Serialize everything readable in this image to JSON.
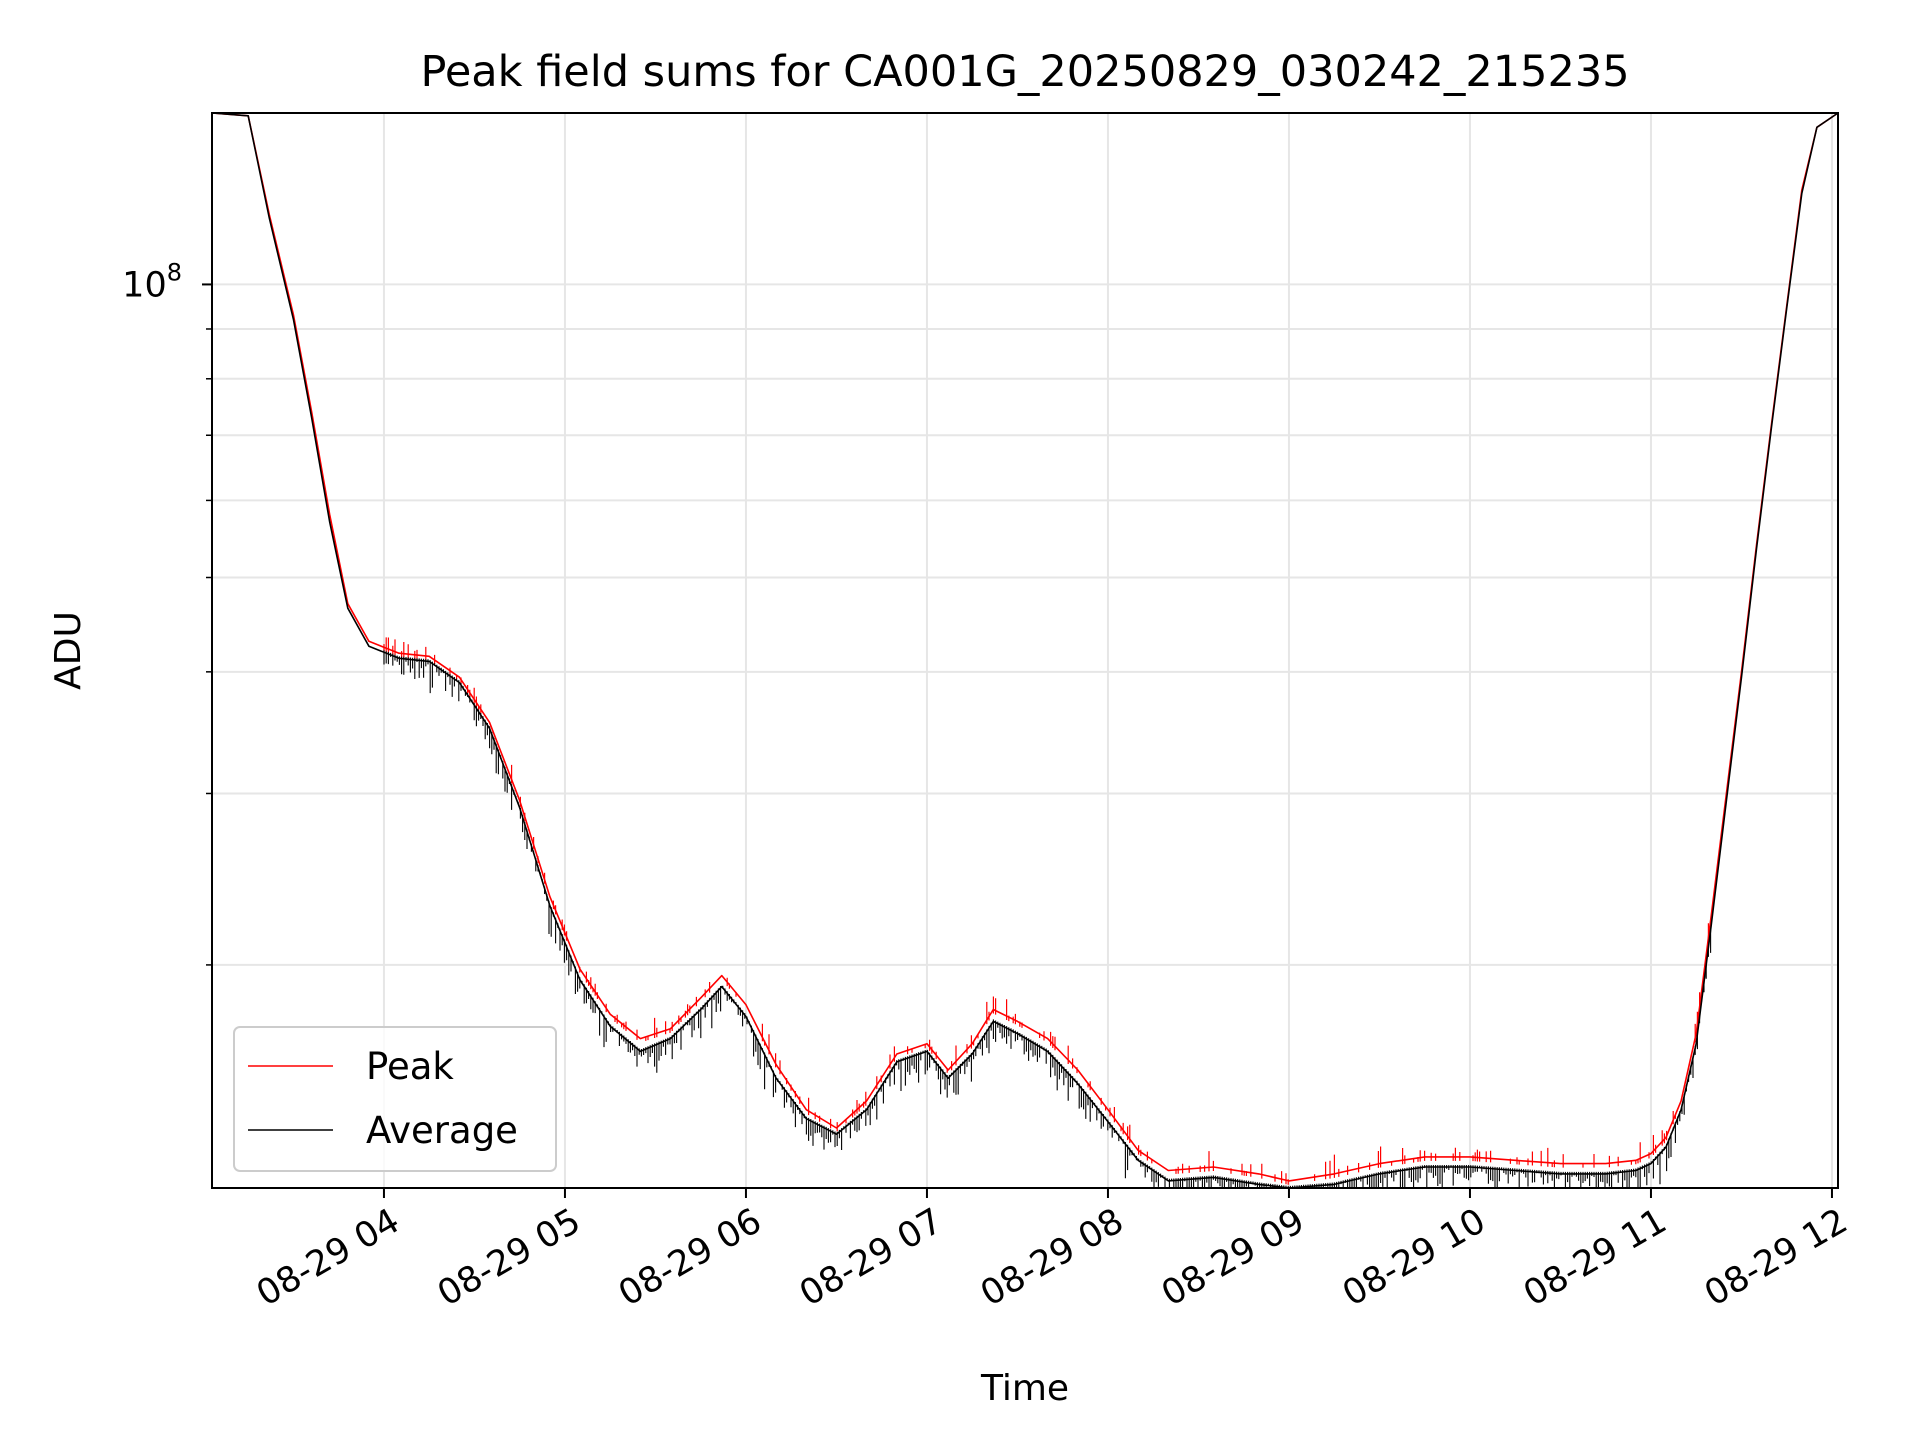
{
  "chart_data": {
    "type": "line",
    "title": "Peak field sums for CA001G_20250829_030242_215235",
    "xlabel": "Time",
    "ylabel": "ADU",
    "yscale": "log",
    "grid": true,
    "legend_position": "lower-left",
    "x_tick_labels": [
      "08-29 04",
      "08-29 05",
      "08-29 06",
      "08-29 07",
      "08-29 08",
      "08-29 09",
      "08-29 10",
      "08-29 11",
      "08-29 12"
    ],
    "y_tick_labels": [
      {
        "base": "10",
        "exp": "8",
        "value": 100000000
      }
    ],
    "xlim": [
      "2025-08-29 03:03",
      "2025-08-29 12:02"
    ],
    "ylim": [
      11800000,
      150000000
    ],
    "series": [
      {
        "name": "Peak",
        "color": "#ff0000",
        "x": [
          "2025-08-29 03:03",
          "2025-08-29 03:15",
          "2025-08-29 03:22",
          "2025-08-29 03:30",
          "2025-08-29 03:36",
          "2025-08-29 03:42",
          "2025-08-29 03:48",
          "2025-08-29 03:55",
          "2025-08-29 04:05",
          "2025-08-29 04:15",
          "2025-08-29 04:25",
          "2025-08-29 04:35",
          "2025-08-29 04:45",
          "2025-08-29 04:55",
          "2025-08-29 05:05",
          "2025-08-29 05:15",
          "2025-08-29 05:25",
          "2025-08-29 05:35",
          "2025-08-29 05:45",
          "2025-08-29 05:52",
          "2025-08-29 06:00",
          "2025-08-29 06:10",
          "2025-08-29 06:20",
          "2025-08-29 06:30",
          "2025-08-29 06:40",
          "2025-08-29 06:50",
          "2025-08-29 07:00",
          "2025-08-29 07:07",
          "2025-08-29 07:15",
          "2025-08-29 07:22",
          "2025-08-29 07:30",
          "2025-08-29 07:40",
          "2025-08-29 07:50",
          "2025-08-29 08:00",
          "2025-08-29 08:10",
          "2025-08-29 08:20",
          "2025-08-29 08:35",
          "2025-08-29 08:50",
          "2025-08-29 09:00",
          "2025-08-29 09:15",
          "2025-08-29 09:30",
          "2025-08-29 09:45",
          "2025-08-29 10:00",
          "2025-08-29 10:15",
          "2025-08-29 10:30",
          "2025-08-29 10:45",
          "2025-08-29 10:55",
          "2025-08-29 11:00",
          "2025-08-29 11:05",
          "2025-08-29 11:10",
          "2025-08-29 11:15",
          "2025-08-29 11:20",
          "2025-08-29 11:25",
          "2025-08-29 11:30",
          "2025-08-29 11:35",
          "2025-08-29 11:40",
          "2025-08-29 11:45",
          "2025-08-29 11:50",
          "2025-08-29 11:55",
          "2025-08-29 12:02"
        ],
        "values": [
          150000000,
          149000000,
          118000000,
          93000000,
          74000000,
          58000000,
          47000000,
          43000000,
          41800000,
          41500000,
          39500000,
          35500000,
          29500000,
          23500000,
          19800000,
          17800000,
          16800000,
          17200000,
          18500000,
          19500000,
          18200000,
          15800000,
          14200000,
          13600000,
          14500000,
          16200000,
          16600000,
          15600000,
          16600000,
          18000000,
          17500000,
          16800000,
          15600000,
          14200000,
          12900000,
          12300000,
          12400000,
          12200000,
          12000000,
          12200000,
          12500000,
          12700000,
          12700000,
          12600000,
          12500000,
          12500000,
          12600000,
          12800000,
          13300000,
          14500000,
          17000000,
          22500000,
          30000000,
          40000000,
          54000000,
          72000000,
          95000000,
          125000000,
          145000000,
          150000000
        ]
      },
      {
        "name": "Average",
        "color": "#000000",
        "x": [
          "2025-08-29 03:03",
          "2025-08-29 03:15",
          "2025-08-29 03:22",
          "2025-08-29 03:30",
          "2025-08-29 03:36",
          "2025-08-29 03:42",
          "2025-08-29 03:48",
          "2025-08-29 03:55",
          "2025-08-29 04:05",
          "2025-08-29 04:15",
          "2025-08-29 04:25",
          "2025-08-29 04:35",
          "2025-08-29 04:45",
          "2025-08-29 04:55",
          "2025-08-29 05:05",
          "2025-08-29 05:15",
          "2025-08-29 05:25",
          "2025-08-29 05:35",
          "2025-08-29 05:45",
          "2025-08-29 05:52",
          "2025-08-29 06:00",
          "2025-08-29 06:10",
          "2025-08-29 06:20",
          "2025-08-29 06:30",
          "2025-08-29 06:40",
          "2025-08-29 06:50",
          "2025-08-29 07:00",
          "2025-08-29 07:07",
          "2025-08-29 07:15",
          "2025-08-29 07:22",
          "2025-08-29 07:30",
          "2025-08-29 07:40",
          "2025-08-29 07:50",
          "2025-08-29 08:00",
          "2025-08-29 08:10",
          "2025-08-29 08:20",
          "2025-08-29 08:35",
          "2025-08-29 08:50",
          "2025-08-29 09:00",
          "2025-08-29 09:15",
          "2025-08-29 09:30",
          "2025-08-29 09:45",
          "2025-08-29 10:00",
          "2025-08-29 10:15",
          "2025-08-29 10:30",
          "2025-08-29 10:45",
          "2025-08-29 10:55",
          "2025-08-29 11:00",
          "2025-08-29 11:05",
          "2025-08-29 11:10",
          "2025-08-29 11:15",
          "2025-08-29 11:20",
          "2025-08-29 11:25",
          "2025-08-29 11:30",
          "2025-08-29 11:35",
          "2025-08-29 11:40",
          "2025-08-29 11:45",
          "2025-08-29 11:50",
          "2025-08-29 11:55",
          "2025-08-29 12:02"
        ],
        "values": [
          150000000,
          149000000,
          117000000,
          92000000,
          73000000,
          57000000,
          46500000,
          42500000,
          41300000,
          41000000,
          39000000,
          35000000,
          29000000,
          23000000,
          19300000,
          17300000,
          16300000,
          16800000,
          18000000,
          19000000,
          17700000,
          15300000,
          13900000,
          13400000,
          14200000,
          15900000,
          16300000,
          15300000,
          16200000,
          17500000,
          17000000,
          16300000,
          15100000,
          13800000,
          12600000,
          12000000,
          12100000,
          11900000,
          11800000,
          11900000,
          12200000,
          12400000,
          12400000,
          12300000,
          12200000,
          12200000,
          12300000,
          12500000,
          13000000,
          14200000,
          16600000,
          22000000,
          29500000,
          39500000,
          53500000,
          71500000,
          94500000,
          124000000,
          145000000,
          150000000
        ]
      }
    ]
  }
}
